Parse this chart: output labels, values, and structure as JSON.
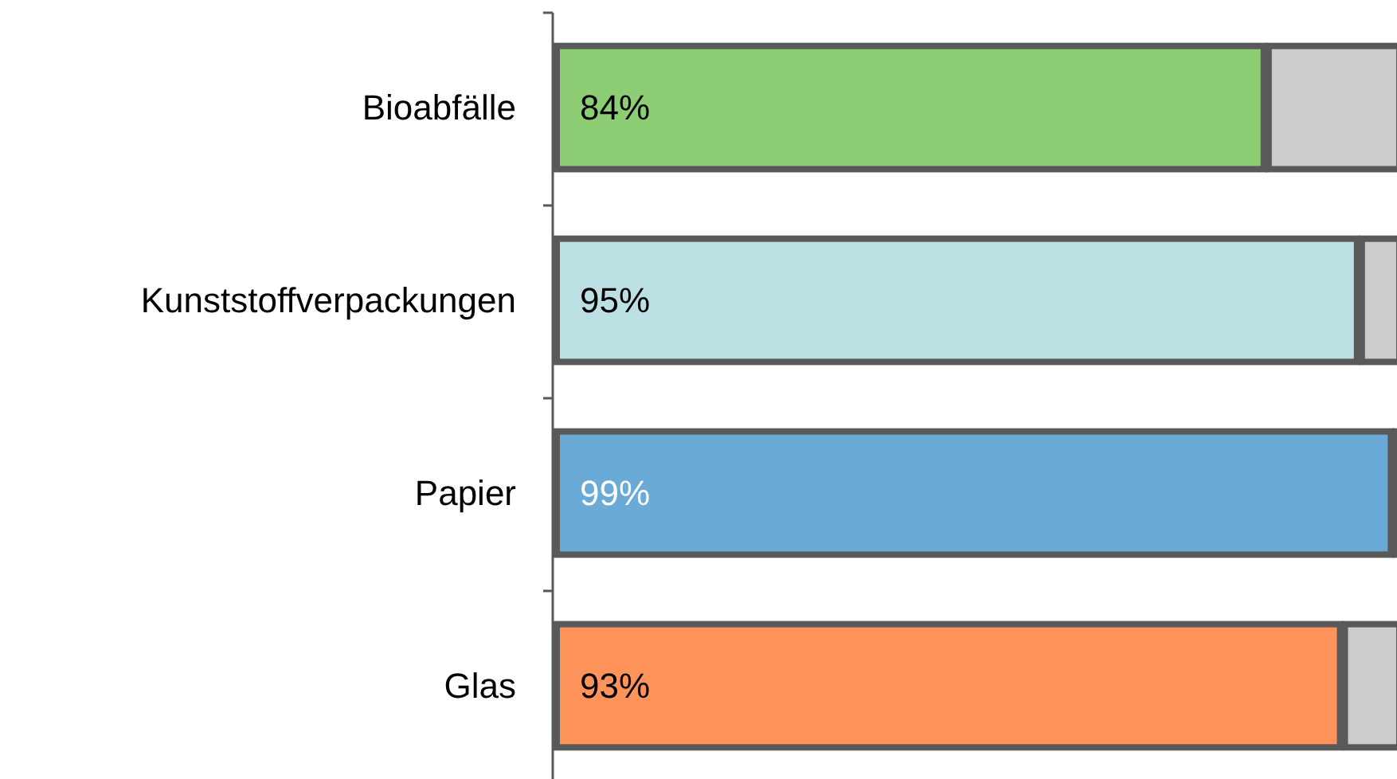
{
  "chart_data": {
    "type": "bar",
    "orientation": "horizontal",
    "stacked": true,
    "xlim": [
      0,
      100
    ],
    "tick_labels": "y",
    "categories": [
      "Bioabfälle",
      "Kunststoffverpackungen",
      "Papier",
      "Glas"
    ],
    "series": [
      {
        "colors": [
          "#8dce75",
          "#bbe0e3",
          "#6aaad6",
          "#ff9359"
        ],
        "values": [
          84,
          95,
          99,
          93
        ],
        "value_labels": [
          "84%",
          "95%",
          "99%",
          "93%"
        ]
      },
      {
        "color": "#cccccc",
        "values": [
          16,
          5,
          1,
          7
        ],
        "value_labels": [
          null,
          null,
          null,
          null
        ]
      }
    ],
    "grid": false
  }
}
